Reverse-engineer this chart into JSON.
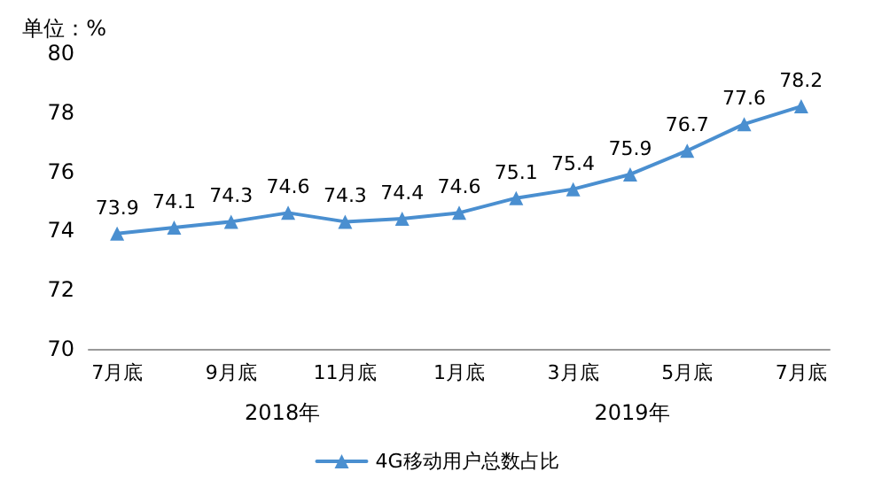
{
  "chart_data": {
    "type": "line",
    "ylabel": "单位：%",
    "categories": [
      "7月底",
      null,
      "9月底",
      null,
      "11月底",
      null,
      "1月底",
      null,
      "3月底",
      null,
      "5月底",
      null,
      "7月底"
    ],
    "series": [
      {
        "name": "4G移动用户总数占比",
        "color": "#4a8fd0",
        "values": [
          73.9,
          74.1,
          74.3,
          74.6,
          74.3,
          74.4,
          74.6,
          75.1,
          75.4,
          75.9,
          76.7,
          77.6,
          78.2
        ]
      }
    ],
    "ylim": [
      70,
      80
    ],
    "yticks": [
      70,
      72,
      74,
      76,
      78,
      80
    ],
    "data_labels": true,
    "marker": "triangle",
    "legend": "bottom",
    "grid": false,
    "annotations": [
      "2018年",
      "2019年"
    ]
  }
}
